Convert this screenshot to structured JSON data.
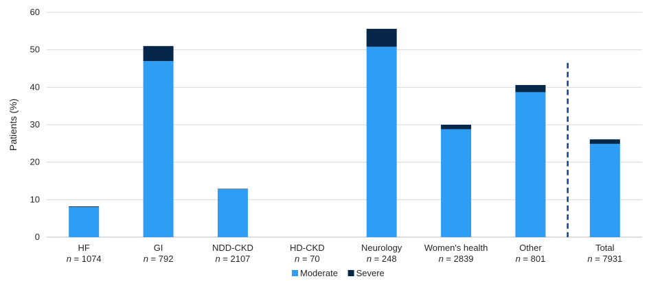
{
  "chart_data": {
    "type": "bar",
    "stacked": true,
    "categories": [
      "HF",
      "GI",
      "NDD-CKD",
      "HD-CKD",
      "Neurology",
      "Women's health",
      "Other",
      "Total"
    ],
    "n_values": [
      "1074",
      "792",
      "2107",
      "70",
      "248",
      "2839",
      "801",
      "7931"
    ],
    "n_prefix": "n",
    "n_sep": " = ",
    "series": [
      {
        "name": "Moderate",
        "color": "#2e9ef5",
        "values": [
          8.0,
          47.0,
          12.8,
          0.0,
          50.8,
          28.8,
          38.7,
          24.9
        ]
      },
      {
        "name": "Severe",
        "color": "#07274a",
        "values": [
          0.2,
          4.0,
          0.1,
          0.0,
          4.8,
          1.2,
          1.9,
          1.2
        ]
      }
    ],
    "ylabel": "Patients (%)",
    "ylim": [
      0,
      60
    ],
    "yticks": [
      0,
      10,
      20,
      30,
      40,
      50,
      60
    ],
    "grid": true,
    "legend": "bottom-center",
    "divider_color": "#0b3f8a"
  }
}
